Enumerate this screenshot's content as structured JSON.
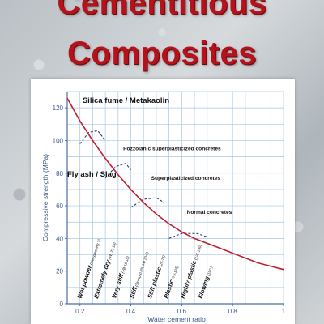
{
  "cover": {
    "title_line_1": "Cementitious",
    "title_line_2": "Composites",
    "colors": {
      "title": "#b5121b",
      "curve": "#c0202a",
      "grid": "#a9c6e6",
      "axis": "#4a6fa5"
    }
  },
  "chart_data": {
    "type": "line",
    "xlabel": "Water cement ratio",
    "ylabel": "Compressive strength (MPa)",
    "xlim": [
      0.15,
      1.0
    ],
    "ylim": [
      0,
      130
    ],
    "x_ticks": [
      "0.2",
      "0.4",
      "0.6",
      "0.8",
      "1"
    ],
    "x_tick_values": [
      0.2,
      0.4,
      0.6,
      0.8,
      1.0
    ],
    "y_ticks": [
      "0",
      "20",
      "40",
      "60",
      "80",
      "100",
      "120"
    ],
    "y_tick_values": [
      0,
      20,
      40,
      60,
      80,
      100,
      120
    ],
    "grid": true,
    "series": [
      {
        "x": [
          0.15,
          0.2,
          0.25,
          0.3,
          0.35,
          0.4,
          0.45,
          0.5,
          0.55,
          0.6,
          0.65,
          0.7,
          0.8,
          0.9,
          1.0
        ],
        "y": [
          126,
          112,
          100,
          89,
          79,
          70,
          62,
          55,
          49,
          44,
          40,
          37,
          31,
          25,
          21
        ]
      }
    ],
    "dashed_arcs": [
      {
        "x": [
          0.2,
          0.235,
          0.27,
          0.3
        ],
        "y": [
          98,
          105,
          106,
          100
        ]
      },
      {
        "x": [
          0.3,
          0.34,
          0.38,
          0.4
        ],
        "y": [
          77,
          84,
          86,
          82
        ]
      },
      {
        "x": [
          0.4,
          0.45,
          0.5,
          0.53
        ],
        "y": [
          59,
          64,
          65,
          62
        ]
      },
      {
        "x": [
          0.55,
          0.6,
          0.66,
          0.7
        ],
        "y": [
          40,
          43,
          43,
          41
        ]
      }
    ],
    "annotations": [
      {
        "text": "Silica fume / Metakaolin",
        "x": 0.21,
        "y": 123,
        "style": "bold-large"
      },
      {
        "text": "Pozzolanic superplasticized concretes",
        "x": 0.37,
        "y": 94,
        "style": "bold-small"
      },
      {
        "text": "Fly ash / Slag",
        "x": 0.15,
        "y": 78,
        "style": "bold-large"
      },
      {
        "text": "Superplasticized concretes",
        "x": 0.48,
        "y": 76,
        "style": "bold-small"
      },
      {
        "text": "Normal concretes",
        "x": 0.62,
        "y": 55,
        "style": "bold-small"
      }
    ],
    "consistency_labels": [
      {
        "text": "Wet powder",
        "sub": "(Wet-pressing ?)",
        "x": 0.205
      },
      {
        "text": "Extremely dry",
        "sub": "(VB 32-18)",
        "x": 0.27
      },
      {
        "text": "Very stiff",
        "sub": "(VB 18-10)",
        "x": 0.34
      },
      {
        "text": "Stiff",
        "sub": "(Slump 0-25, VB 10-5)",
        "x": 0.41
      },
      {
        "text": "Stiff plastic",
        "sub": "(25-75)",
        "x": 0.48
      },
      {
        "text": "Plastic",
        "sub": "(75-125)",
        "x": 0.545
      },
      {
        "text": "Highly plastic",
        "sub": "(125-190)",
        "x": 0.61
      },
      {
        "text": "Flowing",
        "sub": "(190-)",
        "x": 0.68
      }
    ]
  }
}
